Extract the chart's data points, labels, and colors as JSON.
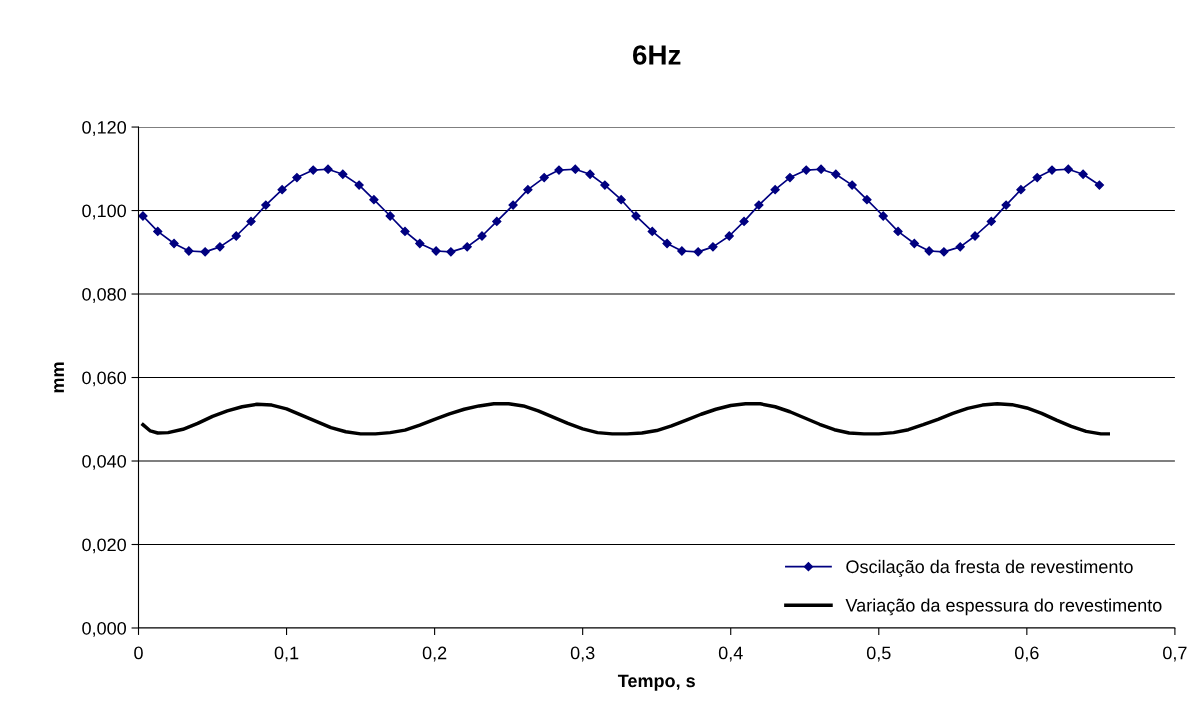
{
  "chart_data": {
    "type": "line",
    "title": "6Hz",
    "xlabel": "Tempo, s",
    "ylabel": "mm",
    "xlim": [
      0,
      0.7
    ],
    "ylim": [
      0,
      0.12
    ],
    "xticks": [
      0,
      {
        "value": 0.1,
        "label": "0,1"
      },
      {
        "value": 0.2,
        "label": "0,2"
      },
      {
        "value": 0.3,
        "label": "0,3"
      },
      {
        "value": 0.4,
        "label": "0,4"
      },
      {
        "value": 0.5,
        "label": "0,5"
      },
      {
        "value": 0.6,
        "label": "0,6"
      },
      {
        "value": 0.7,
        "label": "0,7"
      }
    ],
    "yticks": [
      {
        "value": 0,
        "label": "0,000"
      },
      {
        "value": 0.02,
        "label": "0,020"
      },
      {
        "value": 0.04,
        "label": "0,040"
      },
      {
        "value": 0.06,
        "label": "0,060"
      },
      {
        "value": 0.08,
        "label": "0,080"
      },
      {
        "value": 0.1,
        "label": "0,100"
      },
      {
        "value": 0.12,
        "label": "0,120"
      }
    ],
    "grid": "y",
    "legend": "bottom right",
    "series": [
      {
        "name": "Oscilação da fresta de revestimento",
        "color": "#000080",
        "marker": "diamond",
        "line_style": "solid",
        "x": [
          0.003,
          0.013,
          0.024,
          0.034,
          0.045,
          0.055,
          0.066,
          0.076,
          0.086,
          0.097,
          0.107,
          0.118,
          0.128,
          0.138,
          0.149,
          0.159,
          0.17,
          0.18,
          0.19,
          0.201,
          0.211,
          0.222,
          0.232,
          0.242,
          0.253,
          0.263,
          0.274,
          0.284,
          0.295,
          0.305,
          0.315,
          0.326,
          0.336,
          0.347,
          0.357,
          0.367,
          0.378,
          0.388,
          0.399,
          0.409,
          0.419,
          0.43,
          0.44,
          0.451,
          0.461,
          0.471,
          0.482,
          0.492,
          0.503,
          0.513,
          0.524,
          0.534,
          0.544,
          0.555,
          0.565,
          0.576,
          0.586,
          0.596,
          0.607,
          0.617,
          0.628,
          0.638,
          0.649
        ],
        "values": [
          0.0987,
          0.095,
          0.0921,
          0.0903,
          0.0901,
          0.0913,
          0.0939,
          0.0974,
          0.1013,
          0.105,
          0.1079,
          0.1097,
          0.1099,
          0.1087,
          0.1061,
          0.1026,
          0.0987,
          0.095,
          0.0921,
          0.0903,
          0.0901,
          0.0913,
          0.0939,
          0.0974,
          0.1013,
          0.105,
          0.1079,
          0.1097,
          0.1099,
          0.1087,
          0.1061,
          0.1026,
          0.0987,
          0.095,
          0.0921,
          0.0903,
          0.0901,
          0.0913,
          0.0939,
          0.0974,
          0.1013,
          0.105,
          0.1079,
          0.1097,
          0.1099,
          0.1087,
          0.1061,
          0.1026,
          0.0987,
          0.095,
          0.0921,
          0.0903,
          0.0901,
          0.0913,
          0.0939,
          0.0974,
          0.1013,
          0.105,
          0.1079,
          0.1097,
          0.1099,
          0.1087,
          0.1061
        ]
      },
      {
        "name": "Variação da espessura do revestimento",
        "color": "#000000",
        "marker": "none",
        "line_style": "solid",
        "x": [
          0.003,
          0.008,
          0.013,
          0.02,
          0.03,
          0.04,
          0.05,
          0.06,
          0.07,
          0.08,
          0.09,
          0.1,
          0.11,
          0.12,
          0.13,
          0.14,
          0.15,
          0.16,
          0.17,
          0.18,
          0.19,
          0.2,
          0.21,
          0.22,
          0.23,
          0.24,
          0.25,
          0.26,
          0.27,
          0.28,
          0.29,
          0.3,
          0.31,
          0.32,
          0.33,
          0.34,
          0.35,
          0.36,
          0.37,
          0.38,
          0.39,
          0.4,
          0.41,
          0.42,
          0.43,
          0.44,
          0.45,
          0.46,
          0.47,
          0.48,
          0.49,
          0.5,
          0.51,
          0.52,
          0.53,
          0.54,
          0.55,
          0.56,
          0.57,
          0.58,
          0.59,
          0.6,
          0.61,
          0.62,
          0.63,
          0.64,
          0.65,
          0.655
        ],
        "values": [
          0.0487,
          0.0472,
          0.0467,
          0.0468,
          0.0476,
          0.049,
          0.0507,
          0.052,
          0.053,
          0.0536,
          0.0534,
          0.0525,
          0.051,
          0.0495,
          0.048,
          0.047,
          0.0465,
          0.0465,
          0.0468,
          0.0474,
          0.0486,
          0.05,
          0.0513,
          0.0524,
          0.0532,
          0.0537,
          0.0537,
          0.0532,
          0.052,
          0.0505,
          0.049,
          0.0477,
          0.0468,
          0.0465,
          0.0465,
          0.0467,
          0.0473,
          0.0484,
          0.0498,
          0.0512,
          0.0524,
          0.0533,
          0.0537,
          0.0537,
          0.053,
          0.0518,
          0.0503,
          0.0488,
          0.0475,
          0.0467,
          0.0465,
          0.0465,
          0.0468,
          0.0475,
          0.0487,
          0.05,
          0.0514,
          0.0526,
          0.0534,
          0.0537,
          0.0535,
          0.0527,
          0.0514,
          0.0498,
          0.0483,
          0.0471,
          0.0465,
          0.0465
        ]
      }
    ]
  }
}
